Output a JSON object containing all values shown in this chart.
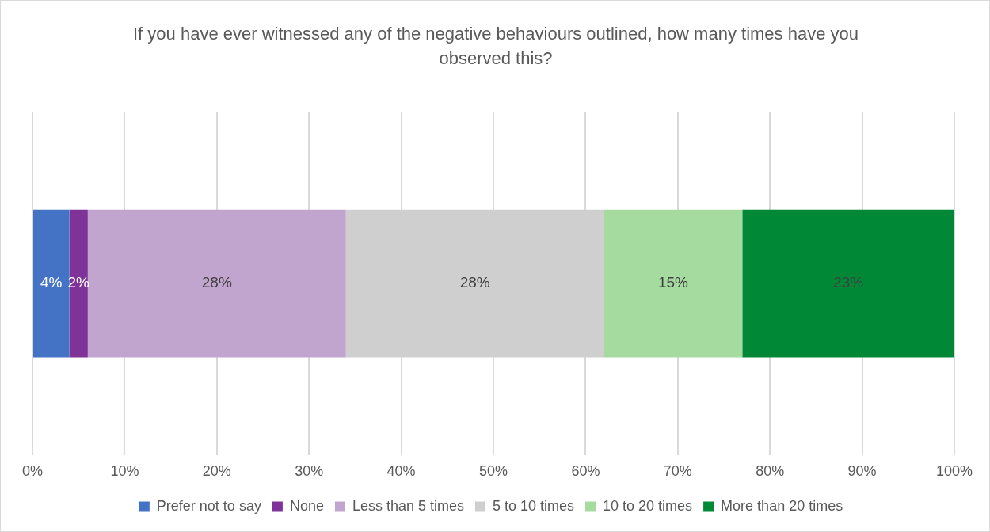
{
  "chart_data": {
    "type": "bar",
    "orientation": "horizontal",
    "stacked": true,
    "title": "If you have ever witnessed any of the negative behaviours outlined, how many times have you observed this?",
    "categories": [
      null
    ],
    "series": [
      {
        "name": "Prefer not to say",
        "color": "#4472c4",
        "values": [
          4
        ],
        "value_labels": [
          "4%"
        ]
      },
      {
        "name": "None",
        "color": "#7f3297",
        "values": [
          2
        ],
        "value_labels": [
          "2%"
        ]
      },
      {
        "name": "Less than 5 times",
        "color": "#c2a5cf",
        "values": [
          28
        ],
        "value_labels": [
          "28%"
        ]
      },
      {
        "name": "5 to 10 times",
        "color": "#d0cfcf",
        "values": [
          28
        ],
        "value_labels": [
          "28%"
        ]
      },
      {
        "name": "10 to 20 times",
        "color": "#a6dba0",
        "values": [
          15
        ],
        "value_labels": [
          "15%"
        ]
      },
      {
        "name": "More than 20 times",
        "color": "#008837",
        "values": [
          23
        ],
        "value_labels": [
          "23%"
        ]
      }
    ],
    "xlim": [
      0,
      100
    ],
    "xticks": [
      {
        "value": 0,
        "label": "0%"
      },
      {
        "value": 10,
        "label": "10%"
      },
      {
        "value": 20,
        "label": "20%"
      },
      {
        "value": 30,
        "label": "30%"
      },
      {
        "value": 40,
        "label": "40%"
      },
      {
        "value": 50,
        "label": "50%"
      },
      {
        "value": 60,
        "label": "60%"
      },
      {
        "value": 70,
        "label": "70%"
      },
      {
        "value": 80,
        "label": "80%"
      },
      {
        "value": 90,
        "label": "90%"
      },
      {
        "value": 100,
        "label": "100%"
      }
    ],
    "grid": "x",
    "legend": "bottom"
  }
}
